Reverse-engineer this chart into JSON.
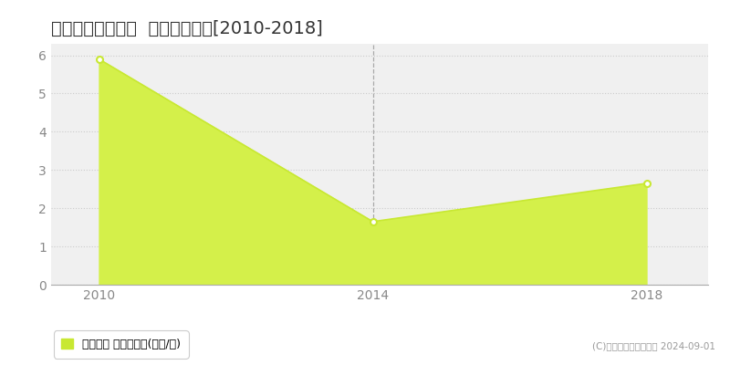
{
  "title": "新潟市江南区割野  土地価格推移[2010-2018]",
  "years": [
    2010,
    2014,
    2018
  ],
  "values": [
    5.9,
    1.65,
    2.65
  ],
  "line_color": "#c8e832",
  "fill_color": "#d4f04a",
  "fill_alpha": 1.0,
  "marker_color": "#ffffff",
  "marker_edge_color": "#c8e832",
  "xlim": [
    2009.3,
    2018.9
  ],
  "ylim": [
    0,
    6.3
  ],
  "yticks": [
    0,
    1,
    2,
    3,
    4,
    5,
    6
  ],
  "xticks": [
    2010,
    2014,
    2018
  ],
  "grid_color": "#cccccc",
  "bg_color": "#ffffff",
  "plot_bg_color": "#f0f0f0",
  "title_fontsize": 14,
  "tick_fontsize": 10,
  "legend_label": "土地価格 平均坪単価(万円/坪)",
  "copyright_text": "(C)土地価格ドットコム 2024-09-01",
  "vline_x": 2014,
  "vline_color": "#aaaaaa"
}
